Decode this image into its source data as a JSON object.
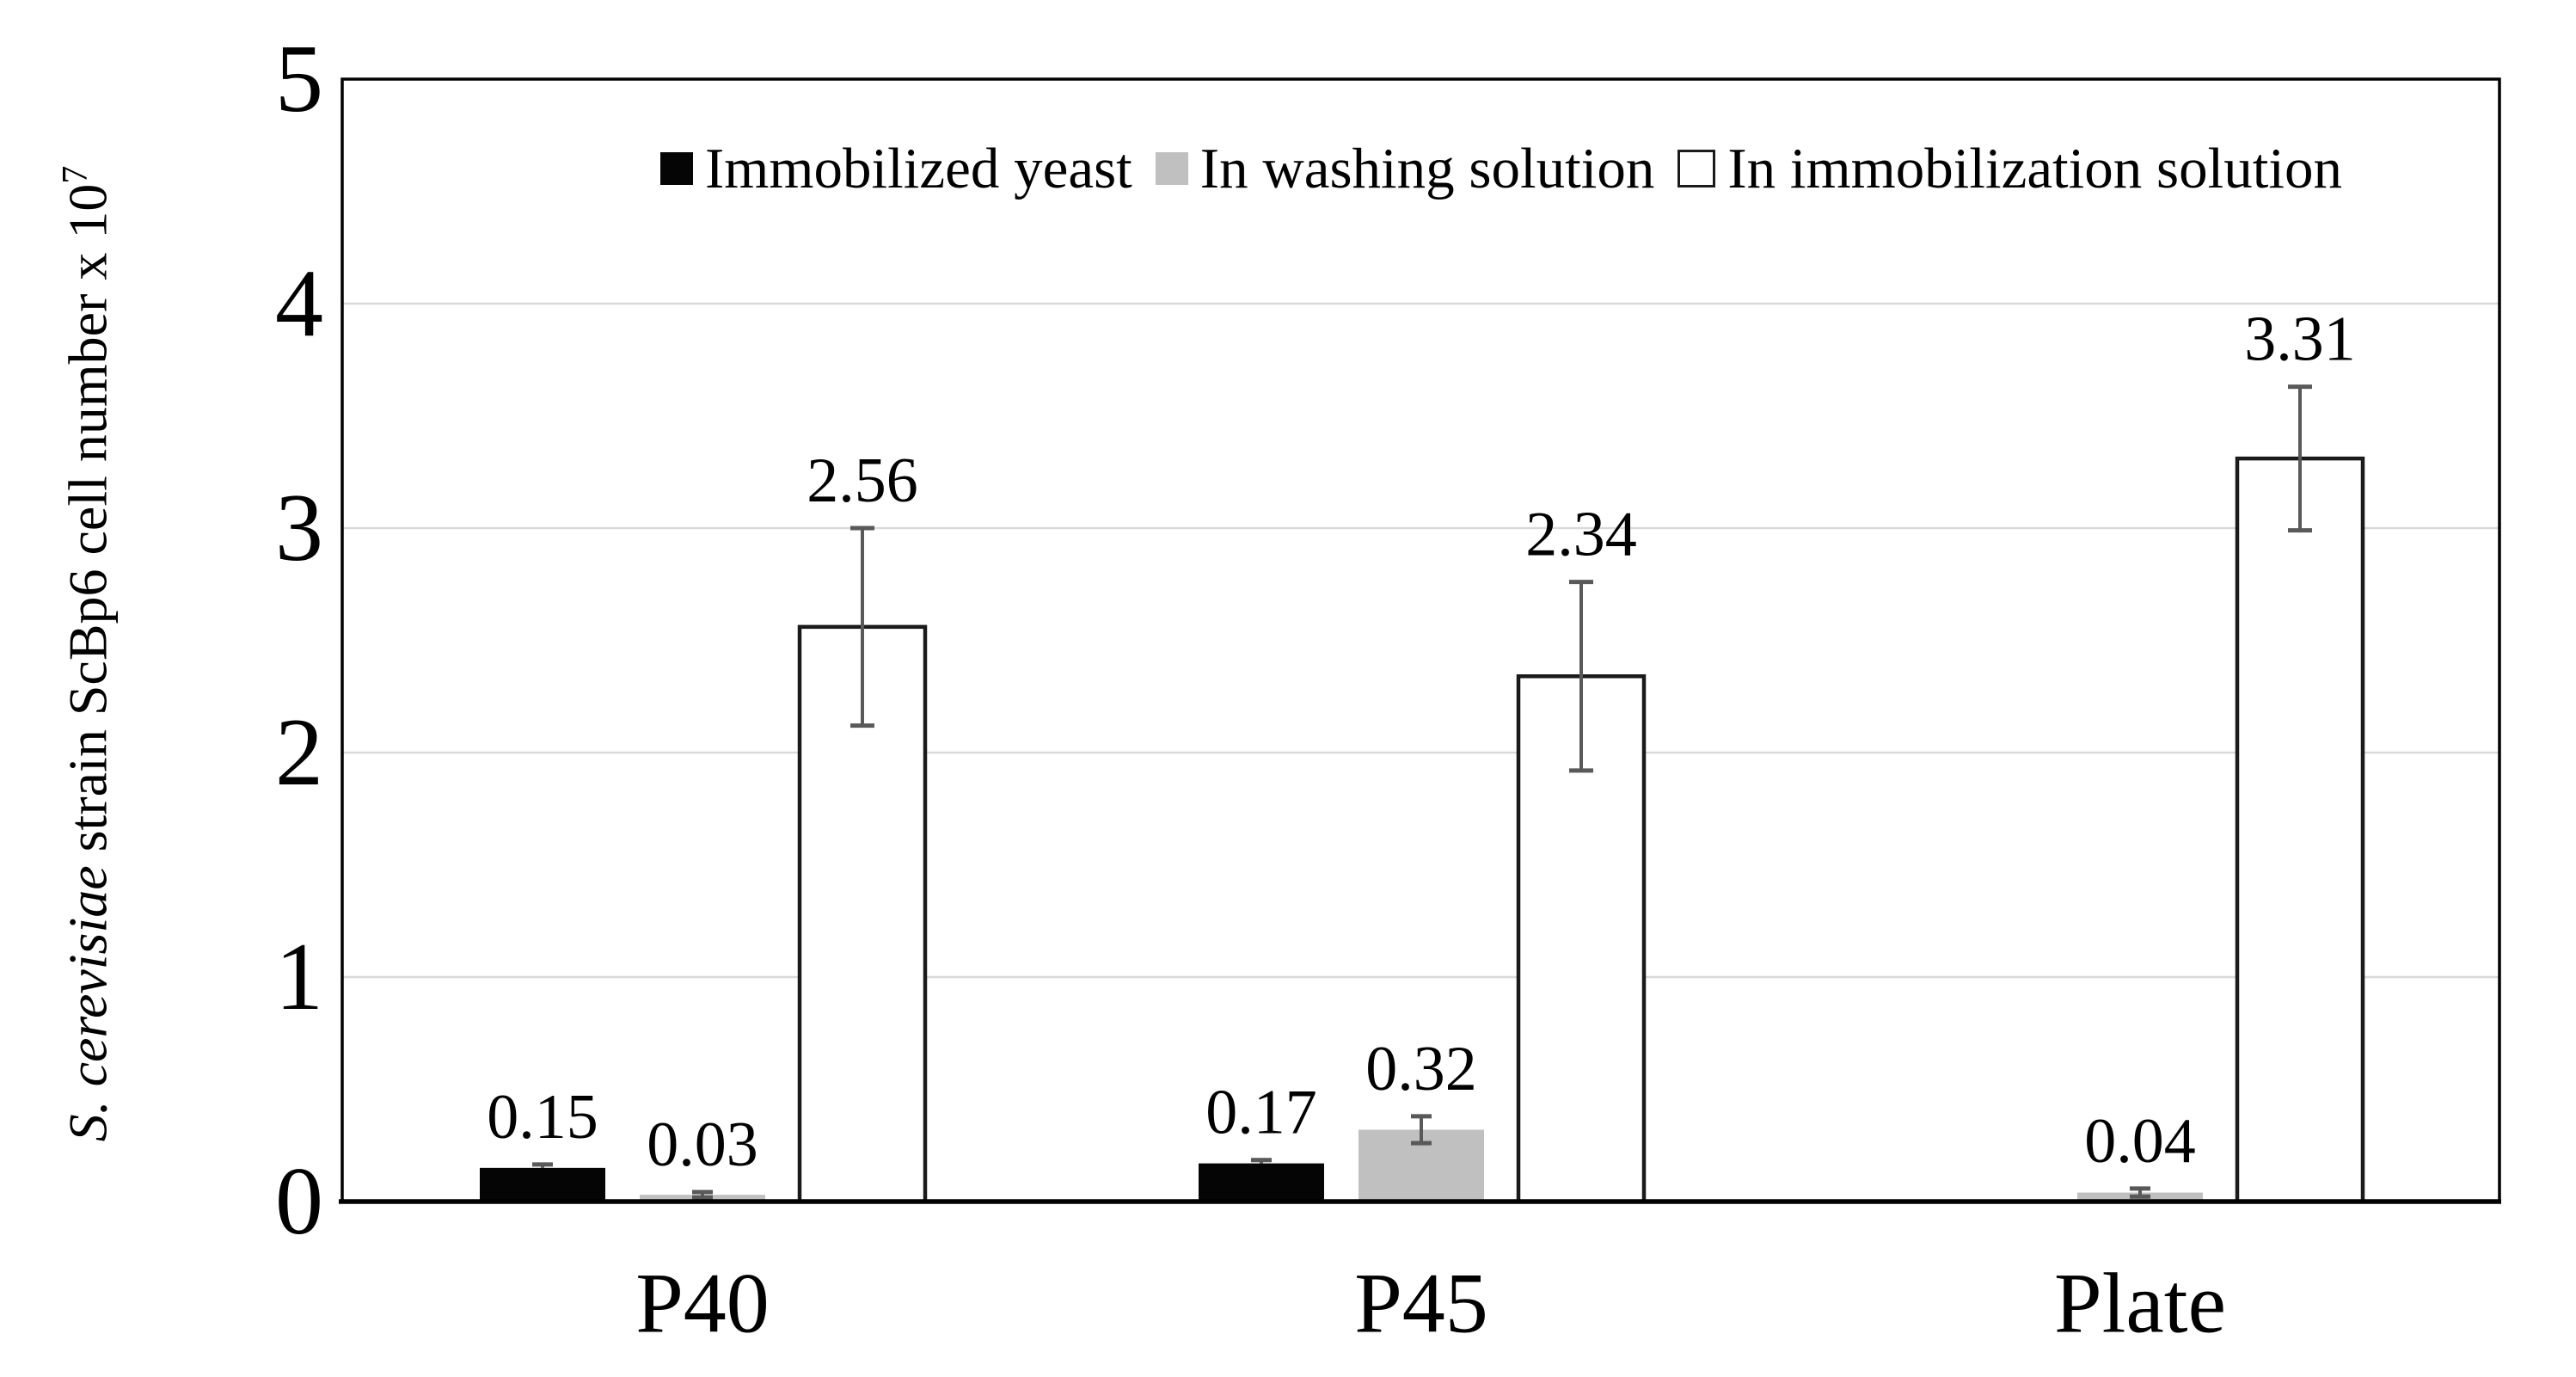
{
  "figure": {
    "y_axis": {
      "label_italic": "S. cerevisiae",
      "label_rest": " strain ScBp6 cell number x 10",
      "label_superscript": "7",
      "tick_labels": [
        "0",
        "1",
        "2",
        "3",
        "4",
        "5"
      ]
    },
    "x_axis": {
      "tick_labels": [
        "P40",
        "P45",
        "Plate"
      ]
    }
  },
  "chart_data": {
    "type": "bar",
    "categories": [
      "P40",
      "P45",
      "Plate"
    ],
    "series": [
      {
        "name": "Immobilized yeast",
        "color": "#050505",
        "border_color": "none",
        "values": [
          0.15,
          0.17,
          null
        ],
        "errors": [
          0.015,
          0.015,
          null
        ],
        "data_labels": [
          "0.15",
          "0.17",
          ""
        ]
      },
      {
        "name": "In washing solution",
        "color": "#c0c0c0",
        "border_color": "none",
        "values": [
          0.03,
          0.32,
          0.04
        ],
        "errors": [
          0.012,
          0.06,
          0.018
        ],
        "data_labels": [
          "0.03",
          "0.32",
          "0.04"
        ]
      },
      {
        "name": "In immobilization solution",
        "color": "#ffffff",
        "border_color": "#1a1a1a",
        "values": [
          2.56,
          2.34,
          3.31
        ],
        "errors": [
          0.44,
          0.42,
          0.32
        ],
        "data_labels": [
          "2.56",
          "2.34",
          "3.31"
        ]
      }
    ],
    "title": "",
    "xlabel": "",
    "ylabel": "S. cerevisiae strain ScBp6 cell number x 10^7",
    "ylim": [
      0,
      5
    ],
    "yticks": [
      0,
      1,
      2,
      3,
      4,
      5
    ],
    "grid": true,
    "legend_position": "inside-top-center",
    "colors": {
      "gridline": "#d9d9d9",
      "axis_border": "#000000",
      "error_bar": "#595959",
      "text": "#000000",
      "background": "#ffffff"
    }
  }
}
